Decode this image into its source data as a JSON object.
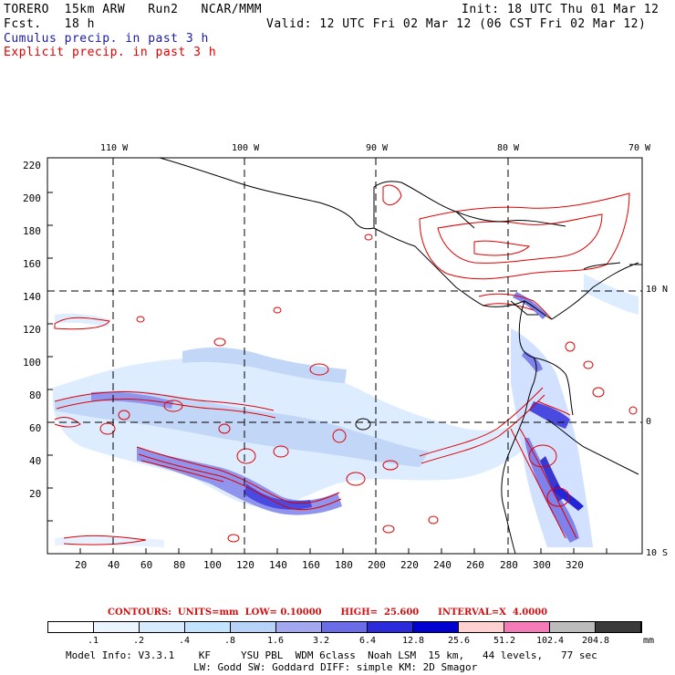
{
  "header": {
    "model": "TORERO  15km ARW   Run2   NCAR/MMM",
    "fcst": "Fcst.   18 h",
    "init": "Init: 18 UTC Thu 01 Mar 12",
    "valid": "Valid: 12 UTC Fri 02 Mar 12 (06 CST Fri 02 Mar 12)",
    "field1": "Cumulus precip. in past 3 h",
    "field2": "Explicit precip. in past 3 h"
  },
  "lon_labels": [
    "110 W",
    "100 W",
    "90 W",
    "80 W",
    "70 W"
  ],
  "lat_labels": [
    "10 N",
    "0",
    "10 S"
  ],
  "x_ticks": [
    "20",
    "40",
    "60",
    "80",
    "100",
    "120",
    "140",
    "160",
    "180",
    "200",
    "220",
    "240",
    "260",
    "280",
    "300",
    "320"
  ],
  "y_ticks": [
    "220",
    "200",
    "180",
    "160",
    "140",
    "120",
    "100",
    "80",
    "60",
    "40",
    "20"
  ],
  "contours_text": "CONTOURS:  UNITS=mm  LOW= 0.10000      HIGH=  25.600      INTERVAL=X  4.0000",
  "colorbar": {
    "colors": [
      "#ffffff",
      "#eaf4ff",
      "#d6ebff",
      "#c2e4ff",
      "#b7d2f8",
      "#a3a8f0",
      "#6b6de8",
      "#2b2bdc",
      "#0000d0",
      "#ffd0d0",
      "#f57ab8",
      "#bcbcbc",
      "#3a3a3a",
      "#d5a0f5"
    ],
    "labels": [
      ".1",
      ".2",
      ".4",
      ".8",
      "1.6",
      "3.2",
      "6.4",
      "12.8",
      "25.6",
      "51.2",
      "102.4",
      "204.8"
    ],
    "unit": "mm"
  },
  "footer": {
    "line1": "Model Info: V3.3.1    KF     YSU PBL  WDM 6class  Noah LSM  15 km,   44 levels,   77 sec",
    "line2": "LW: Godd SW: Goddard DIFF: simple KM: 2D Smagor"
  },
  "colors": {
    "cumulus": "#2b2bdc",
    "explicit": "#e00000"
  }
}
